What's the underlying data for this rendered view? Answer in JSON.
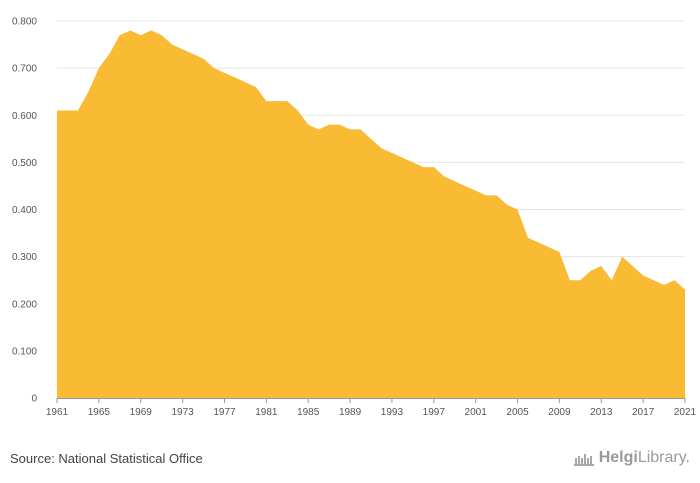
{
  "chart_data": {
    "type": "area",
    "title": "",
    "xlabel": "",
    "ylabel": "",
    "ylim": [
      0,
      0.8
    ],
    "yticks": [
      "0",
      "0.100",
      "0.200",
      "0.300",
      "0.400",
      "0.500",
      "0.600",
      "0.700",
      "0.800"
    ],
    "xlim": [
      1961,
      2021
    ],
    "xticks": [
      "1961",
      "1965",
      "1969",
      "1973",
      "1977",
      "1981",
      "1985",
      "1989",
      "1993",
      "1997",
      "2001",
      "2005",
      "2009",
      "2013",
      "2017",
      "2021"
    ],
    "color": "#f9bb33",
    "x": [
      1961,
      1962,
      1963,
      1964,
      1965,
      1966,
      1967,
      1968,
      1969,
      1970,
      1971,
      1972,
      1973,
      1974,
      1975,
      1976,
      1977,
      1978,
      1979,
      1980,
      1981,
      1982,
      1983,
      1984,
      1985,
      1986,
      1987,
      1988,
      1989,
      1990,
      1991,
      1992,
      1993,
      1994,
      1995,
      1996,
      1997,
      1998,
      1999,
      2000,
      2001,
      2002,
      2003,
      2004,
      2005,
      2006,
      2007,
      2008,
      2009,
      2010,
      2011,
      2012,
      2013,
      2014,
      2015,
      2016,
      2017,
      2018,
      2019,
      2020,
      2021
    ],
    "values": [
      0.61,
      0.61,
      0.61,
      0.65,
      0.7,
      0.73,
      0.77,
      0.78,
      0.77,
      0.78,
      0.77,
      0.75,
      0.74,
      0.73,
      0.72,
      0.7,
      0.69,
      0.68,
      0.67,
      0.66,
      0.63,
      0.63,
      0.63,
      0.61,
      0.58,
      0.57,
      0.58,
      0.58,
      0.57,
      0.57,
      0.55,
      0.53,
      0.52,
      0.51,
      0.5,
      0.49,
      0.49,
      0.47,
      0.46,
      0.45,
      0.44,
      0.43,
      0.43,
      0.41,
      0.4,
      0.34,
      0.33,
      0.32,
      0.31,
      0.25,
      0.25,
      0.27,
      0.28,
      0.25,
      0.3,
      0.28,
      0.26,
      0.25,
      0.24,
      0.25,
      0.23
    ]
  },
  "footer": {
    "source": "Source: National Statistical Office",
    "logo_a": "Helgi",
    "logo_b": "Library."
  }
}
